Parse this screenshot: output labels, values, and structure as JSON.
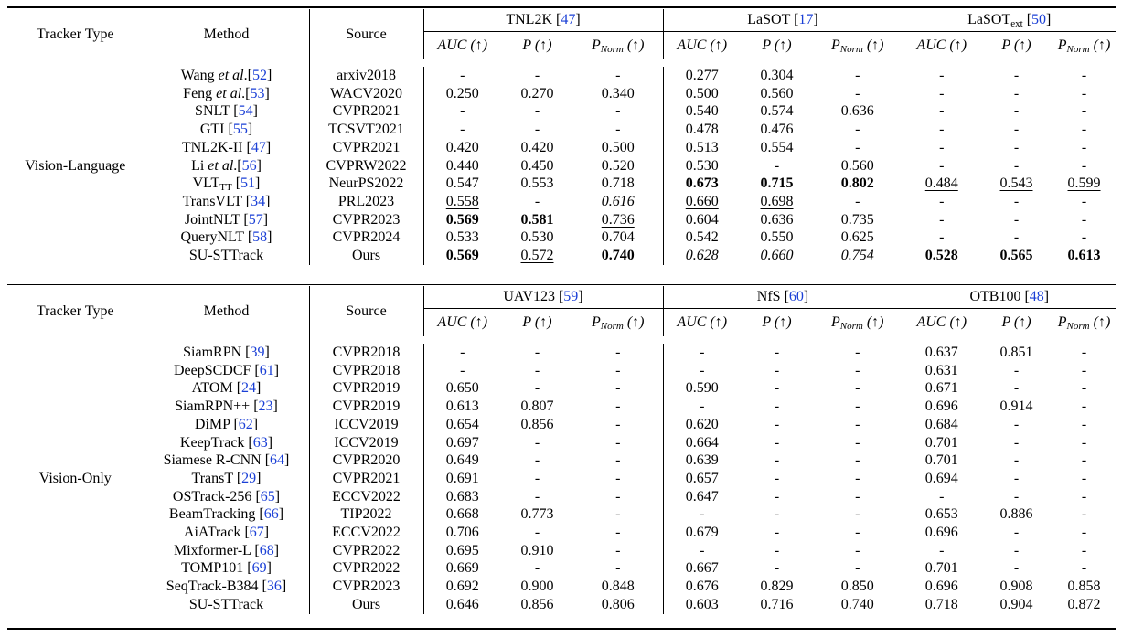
{
  "sections": [
    {
      "tracker_type_header": "Tracker Type",
      "method_header": "Method",
      "source_header": "Source",
      "datasets": [
        {
          "name": "TNL2K ",
          "ref": "47",
          "sub": ""
        },
        {
          "name": "LaSOT ",
          "ref": "17",
          "sub": ""
        },
        {
          "name": "LaSOT",
          "sub": "ext",
          "ref": "50"
        }
      ],
      "metrics": [
        "AUC (↑)",
        "P (↑)",
        "PNorm (↑)"
      ],
      "group_label": "Vision-Language",
      "rows": [
        {
          "pre": "Wang ",
          "etal": "et al",
          "post": ".",
          "ref": "52",
          "source": "arxiv2018",
          "vals": [
            "-",
            "-",
            "-",
            "0.277",
            "0.304",
            "-",
            "-",
            "-",
            "-"
          ]
        },
        {
          "pre": "Feng ",
          "etal": "et al",
          "post": ".",
          "ref": "53",
          "source": "WACV2020",
          "vals": [
            "0.250",
            "0.270",
            "0.340",
            "0.500",
            "0.560",
            "-",
            "-",
            "-",
            "-"
          ]
        },
        {
          "pre": "SNLT ",
          "ref": "54",
          "source": "CVPR2021",
          "vals": [
            "-",
            "-",
            "-",
            "0.540",
            "0.574",
            "0.636",
            "-",
            "-",
            "-"
          ]
        },
        {
          "pre": "GTI ",
          "ref": "55",
          "source": "TCSVT2021",
          "vals": [
            "-",
            "-",
            "-",
            "0.478",
            "0.476",
            "-",
            "-",
            "-",
            "-"
          ]
        },
        {
          "pre": "TNL2K-II ",
          "ref": "47",
          "source": "CVPR2021",
          "vals": [
            "0.420",
            "0.420",
            "0.500",
            "0.513",
            "0.554",
            "-",
            "-",
            "-",
            "-"
          ]
        },
        {
          "pre": "Li ",
          "etal": "et al",
          "post": ".",
          "ref": "56",
          "source": "CVPRW2022",
          "vals": [
            "0.440",
            "0.450",
            "0.520",
            "0.530",
            "-",
            "0.560",
            "-",
            "-",
            "-"
          ]
        },
        {
          "pre": "VLT",
          "sub": "TT",
          "ref": "51",
          "source": "NeurPS2022",
          "vals": [
            "0.547",
            "0.553",
            "0.718",
            "0.673",
            "0.715",
            "0.802",
            "0.484",
            "0.543",
            "0.599"
          ],
          "styles": [
            "",
            "",
            "",
            "b",
            "b",
            "b",
            "u",
            "u",
            "u"
          ]
        },
        {
          "pre": "TransVLT ",
          "ref": "34",
          "source": "PRL2023",
          "vals": [
            "0.558",
            "-",
            "0.616",
            "0.660",
            "0.698",
            "-",
            "-",
            "-",
            "-"
          ],
          "styles": [
            "u",
            "",
            "it",
            "u",
            "u",
            "",
            "",
            "",
            ""
          ]
        },
        {
          "pre": "JointNLT ",
          "ref": "57",
          "source": "CVPR2023",
          "vals": [
            "0.569",
            "0.581",
            "0.736",
            "0.604",
            "0.636",
            "0.735",
            "-",
            "-",
            "-"
          ],
          "styles": [
            "b",
            "b",
            "u",
            "",
            "",
            "",
            "",
            "",
            ""
          ]
        },
        {
          "pre": "QueryNLT ",
          "ref": "58",
          "source": "CVPR2024",
          "vals": [
            "0.533",
            "0.530",
            "0.704",
            "0.542",
            "0.550",
            "0.625",
            "-",
            "-",
            "-"
          ]
        },
        {
          "pre": "SU-STTrack",
          "source": "Ours",
          "vals": [
            "0.569",
            "0.572",
            "0.740",
            "0.628",
            "0.660",
            "0.754",
            "0.528",
            "0.565",
            "0.613"
          ],
          "styles": [
            "b",
            "u",
            "b",
            "it",
            "it",
            "it",
            "b",
            "b",
            "b"
          ]
        }
      ]
    },
    {
      "tracker_type_header": "Tracker Type",
      "method_header": "Method",
      "source_header": "Source",
      "datasets": [
        {
          "name": "UAV123 ",
          "ref": "59",
          "sub": ""
        },
        {
          "name": "NfS ",
          "ref": "60",
          "sub": ""
        },
        {
          "name": "OTB100 ",
          "ref": "48",
          "sub": ""
        }
      ],
      "metrics": [
        "AUC (↑)",
        "P (↑)",
        "PNorm (↑)"
      ],
      "group_label": "Vision-Only",
      "rows": [
        {
          "pre": "SiamRPN ",
          "ref": "39",
          "source": "CVPR2018",
          "vals": [
            "-",
            "-",
            "-",
            "-",
            "-",
            "-",
            "0.637",
            "0.851",
            "-"
          ]
        },
        {
          "pre": "DeepSCDCF ",
          "ref": "61",
          "source": "CVPR2018",
          "vals": [
            "-",
            "-",
            "-",
            "-",
            "-",
            "-",
            "0.631",
            "-",
            "-"
          ]
        },
        {
          "pre": "ATOM ",
          "ref": "24",
          "source": "CVPR2019",
          "vals": [
            "0.650",
            "-",
            "-",
            "0.590",
            "-",
            "-",
            "0.671",
            "-",
            "-"
          ]
        },
        {
          "pre": "SiamRPN++ ",
          "ref": "23",
          "source": "CVPR2019",
          "vals": [
            "0.613",
            "0.807",
            "-",
            "-",
            "-",
            "-",
            "0.696",
            "0.914",
            "-"
          ]
        },
        {
          "pre": "DiMP ",
          "ref": "62",
          "source": "ICCV2019",
          "vals": [
            "0.654",
            "0.856",
            "-",
            "0.620",
            "-",
            "-",
            "0.684",
            "-",
            "-"
          ]
        },
        {
          "pre": "KeepTrack ",
          "ref": "63",
          "source": "ICCV2019",
          "vals": [
            "0.697",
            "-",
            "-",
            "0.664",
            "-",
            "-",
            "0.701",
            "-",
            "-"
          ]
        },
        {
          "pre": "Siamese R-CNN ",
          "ref": "64",
          "source": "CVPR2020",
          "vals": [
            "0.649",
            "-",
            "-",
            "0.639",
            "-",
            "-",
            "0.701",
            "-",
            "-"
          ]
        },
        {
          "pre": "TransT ",
          "ref": "29",
          "source": "CVPR2021",
          "vals": [
            "0.691",
            "-",
            "-",
            "0.657",
            "-",
            "-",
            "0.694",
            "-",
            "-"
          ]
        },
        {
          "pre": "OSTrack-256 ",
          "ref": "65",
          "source": "ECCV2022",
          "vals": [
            "0.683",
            "-",
            "-",
            "0.647",
            "-",
            "-",
            "-",
            "-",
            "-"
          ]
        },
        {
          "pre": "BeamTracking ",
          "ref": "66",
          "source": "TIP2022",
          "vals": [
            "0.668",
            "0.773",
            "-",
            "-",
            "-",
            "-",
            "0.653",
            "0.886",
            "-"
          ]
        },
        {
          "pre": "AiATrack ",
          "ref": "67",
          "source": "ECCV2022",
          "vals": [
            "0.706",
            "-",
            "-",
            "0.679",
            "-",
            "-",
            "0.696",
            "-",
            "-"
          ]
        },
        {
          "pre": "Mixformer-L ",
          "ref": "68",
          "source": "CVPR2022",
          "vals": [
            "0.695",
            "0.910",
            "-",
            "-",
            "-",
            "-",
            "-",
            "-",
            "-"
          ]
        },
        {
          "pre": "TOMP101 ",
          "ref": "69",
          "source": "CVPR2022",
          "vals": [
            "0.669",
            "-",
            "-",
            "0.667",
            "-",
            "-",
            "0.701",
            "-",
            "-"
          ]
        },
        {
          "pre": "SeqTrack-B384 ",
          "ref": "36",
          "source": "CVPR2023",
          "vals": [
            "0.692",
            "0.900",
            "0.848",
            "0.676",
            "0.829",
            "0.850",
            "0.696",
            "0.908",
            "0.858"
          ]
        },
        {
          "pre": "SU-STTrack",
          "source": "Ours",
          "vals": [
            "0.646",
            "0.856",
            "0.806",
            "0.603",
            "0.716",
            "0.740",
            "0.718",
            "0.904",
            "0.872"
          ]
        }
      ]
    }
  ]
}
